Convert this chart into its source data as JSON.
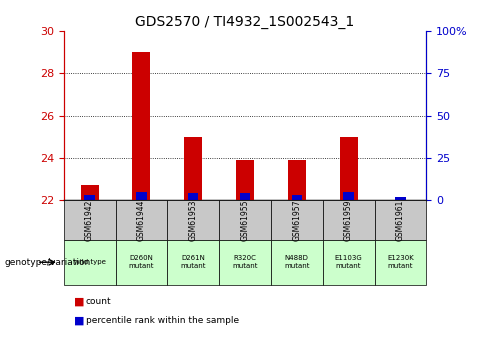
{
  "title": "GDS2570 / TI4932_1S002543_1",
  "samples": [
    "GSM61942",
    "GSM61944",
    "GSM61953",
    "GSM61955",
    "GSM61957",
    "GSM61959",
    "GSM61961"
  ],
  "genotypes": [
    "wild type",
    "D260N\nmutant",
    "D261N\nmutant",
    "R320C\nmutant",
    "N488D\nmutant",
    "E1103G\nmutant",
    "E1230K\nmutant"
  ],
  "count_values": [
    22.7,
    29.0,
    25.0,
    23.9,
    23.9,
    25.0,
    22.0
  ],
  "percentile_values": [
    3,
    5,
    4,
    4,
    3,
    5,
    2
  ],
  "bar_bottom": 22.0,
  "ylim_left": [
    22,
    30
  ],
  "ylim_right": [
    0,
    100
  ],
  "yticks_left": [
    22,
    24,
    26,
    28,
    30
  ],
  "ytick_labels_right": [
    "0",
    "25",
    "50",
    "75",
    "100%"
  ],
  "red_color": "#cc0000",
  "blue_color": "#0000cc",
  "title_fontsize": 10,
  "tick_label_color_left": "#cc0000",
  "tick_label_color_right": "#0000cc",
  "sample_bg_color": "#c8c8c8",
  "genotype_bg_color": "#ccffcc",
  "legend_count_color": "#cc0000",
  "legend_percentile_color": "#0000cc",
  "count_bar_width": 0.35,
  "percentile_bar_width": 0.2
}
